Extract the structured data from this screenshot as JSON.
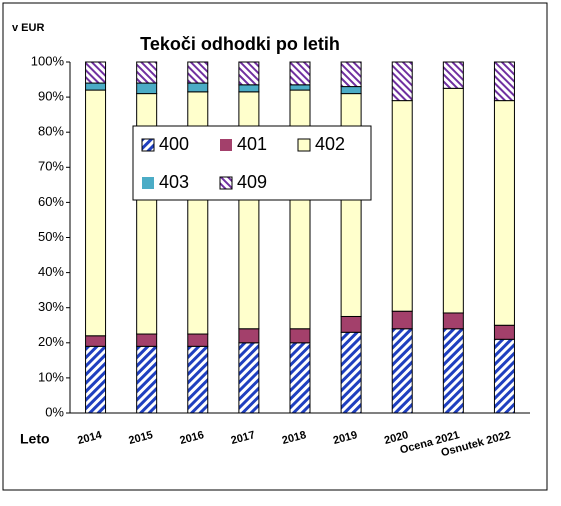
{
  "chart_data": {
    "type": "stacked_bar_100",
    "title": "Tekoči odhodki po letih",
    "unit_label": "v EUR",
    "x_label": "Leto",
    "categories": [
      "2014",
      "2015",
      "2016",
      "2017",
      "2018",
      "2019",
      "2020",
      "Ocena 2021",
      "Osnutek 2022"
    ],
    "series": [
      {
        "name": "400",
        "color": "#1f3fbf",
        "pattern": "hatch",
        "values": [
          19,
          19,
          19,
          20,
          20,
          23,
          24,
          24,
          21
        ]
      },
      {
        "name": "401",
        "color": "#a3406b",
        "values": [
          3,
          3.5,
          3.5,
          4,
          4,
          4.5,
          5,
          4.5,
          4
        ]
      },
      {
        "name": "402",
        "color": "#ffffcc",
        "values": [
          70,
          68.5,
          69,
          67.5,
          68,
          63.5,
          60,
          64,
          64
        ]
      },
      {
        "name": "403",
        "color": "#4bacc6",
        "values": [
          2,
          3,
          2.5,
          2,
          1.5,
          2,
          0,
          0,
          0
        ]
      },
      {
        "name": "409",
        "color": "#7030a0",
        "pattern": "hatch",
        "values": [
          6,
          6,
          6,
          6.5,
          6.5,
          7,
          11,
          7.5,
          11
        ]
      }
    ],
    "ylim": [
      0,
      100
    ],
    "yticks": [
      {
        "value": 0,
        "label": "0%"
      },
      {
        "value": 10,
        "label": "10%"
      },
      {
        "value": 20,
        "label": "20%"
      },
      {
        "value": 30,
        "label": "30%"
      },
      {
        "value": 40,
        "label": "40%"
      },
      {
        "value": 50,
        "label": "50%"
      },
      {
        "value": 60,
        "label": "60%"
      },
      {
        "value": 70,
        "label": "70%"
      },
      {
        "value": 80,
        "label": "80%"
      },
      {
        "value": 90,
        "label": "90%"
      },
      {
        "value": 100,
        "label": "100%"
      }
    ],
    "legend": "inside-top-left",
    "grid": false
  }
}
